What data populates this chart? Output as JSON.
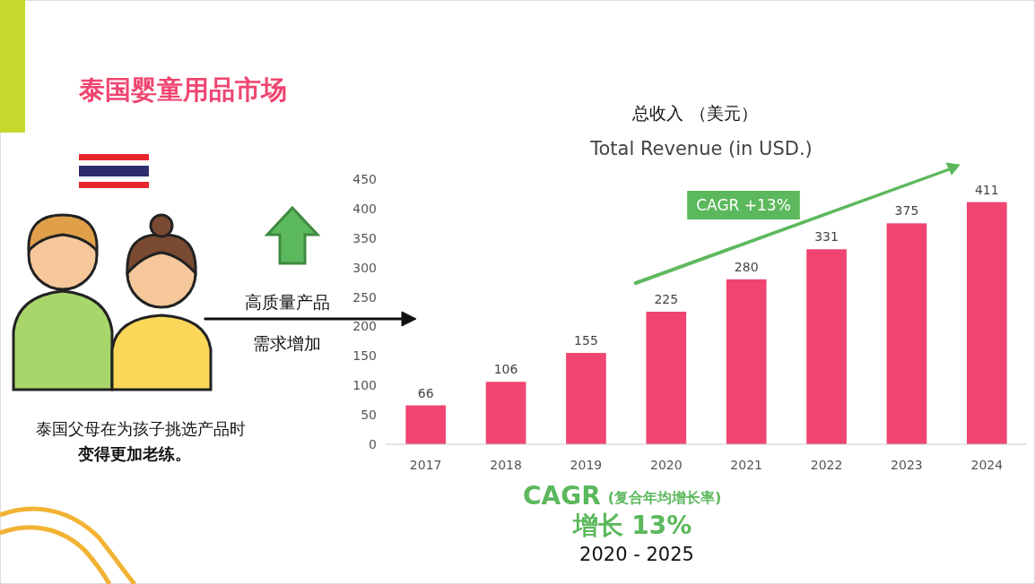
{
  "chart_data": {
    "type": "bar",
    "title": "总收入 （美元）",
    "subtitle": "Total Revenue (in USD.)",
    "categories": [
      "2017",
      "2018",
      "2019",
      "2020",
      "2021",
      "2022",
      "2023",
      "2024"
    ],
    "values": [
      66,
      106,
      155,
      225,
      280,
      331,
      375,
      411
    ],
    "color": "#ef4570",
    "ylim": [
      0,
      450
    ],
    "yticks": [
      0,
      50,
      100,
      150,
      200,
      250,
      300,
      350,
      400,
      450
    ],
    "grid": false,
    "data_labels": true,
    "annotations": [
      "泰国婴童用品市场",
      "CAGR +13%",
      "高质量产品",
      "需求增加",
      "泰国父母在为孩子挑选产品时",
      "变得更加老练。",
      "CAGR",
      "(复合年均增长率)",
      "增长 13%",
      "2020 - 2025"
    ]
  }
}
